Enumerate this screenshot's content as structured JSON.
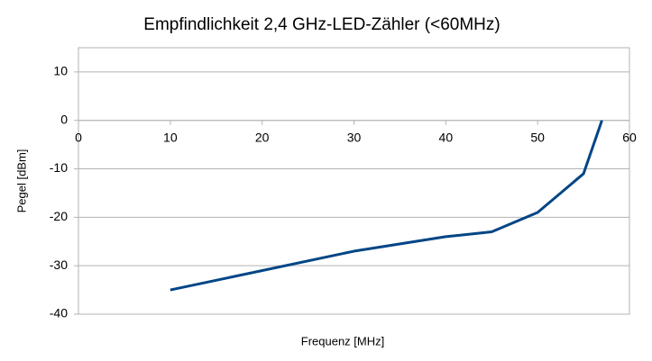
{
  "chart_data": {
    "type": "line",
    "title": "Empfindlichkeit 2,4 GHz-LED-Zähler (<60MHz)",
    "x_label": "Frequenz [MHz]",
    "y_label": "Pegel [dBm]",
    "x": [
      10,
      30,
      40,
      45,
      50,
      55,
      57
    ],
    "series": [
      {
        "name": "Pegel",
        "color": "#004586",
        "values": [
          -35,
          -27,
          -24,
          -23,
          -19,
          -11,
          0
        ]
      }
    ],
    "xlim": [
      0,
      60
    ],
    "xticks": [
      0,
      10,
      20,
      30,
      40,
      50,
      60
    ],
    "ylim": [
      -40,
      15
    ],
    "yticks": [
      -40,
      -30,
      -20,
      -10,
      0,
      10
    ],
    "grid": true
  }
}
